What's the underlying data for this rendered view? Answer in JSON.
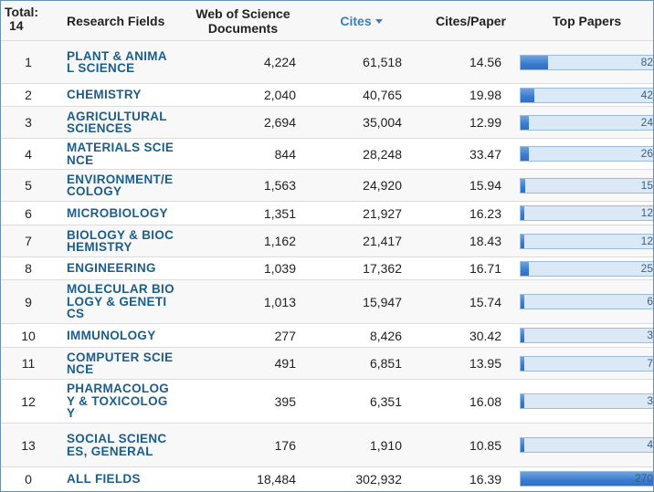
{
  "header": {
    "total_label": "Total:",
    "total_count": "14",
    "field": "Research Fields",
    "docs_line1": "Web of Science",
    "docs_line2": "Documents",
    "cites": "Cites",
    "cites_per_paper": "Cites/Paper",
    "top_papers": "Top Papers"
  },
  "colors": {
    "field_link": "#1b5e8c",
    "sorted_header": "#3b7ec0",
    "bar_fill": "#3a7bd0",
    "bar_track": "#dbe8f6"
  },
  "top_papers_max": 270,
  "rows": [
    {
      "rank": "1",
      "field": "PLANT & ANIMAL SCIENCE",
      "docs": "4,224",
      "cites": "61,518",
      "cpp": "14.56",
      "top": "82",
      "top_value": 82
    },
    {
      "rank": "2",
      "field": "CHEMISTRY",
      "docs": "2,040",
      "cites": "40,765",
      "cpp": "19.98",
      "top": "42",
      "top_value": 42
    },
    {
      "rank": "3",
      "field": "AGRICULTURAL SCIENCES",
      "docs": "2,694",
      "cites": "35,004",
      "cpp": "12.99",
      "top": "24",
      "top_value": 24
    },
    {
      "rank": "4",
      "field": "MATERIALS SCIENCE",
      "docs": "844",
      "cites": "28,248",
      "cpp": "33.47",
      "top": "26",
      "top_value": 26
    },
    {
      "rank": "5",
      "field": "ENVIRONMENT/ECOLOGY",
      "docs": "1,563",
      "cites": "24,920",
      "cpp": "15.94",
      "top": "15",
      "top_value": 15
    },
    {
      "rank": "6",
      "field": "MICROBIOLOGY",
      "docs": "1,351",
      "cites": "21,927",
      "cpp": "16.23",
      "top": "12",
      "top_value": 12
    },
    {
      "rank": "7",
      "field": "BIOLOGY & BIOCHEMISTRY",
      "docs": "1,162",
      "cites": "21,417",
      "cpp": "18.43",
      "top": "12",
      "top_value": 12
    },
    {
      "rank": "8",
      "field": "ENGINEERING",
      "docs": "1,039",
      "cites": "17,362",
      "cpp": "16.71",
      "top": "25",
      "top_value": 25
    },
    {
      "rank": "9",
      "field": "MOLECULAR BIOLOGY & GENETICS",
      "docs": "1,013",
      "cites": "15,947",
      "cpp": "15.74",
      "top": "6",
      "top_value": 6
    },
    {
      "rank": "10",
      "field": "IMMUNOLOGY",
      "docs": "277",
      "cites": "8,426",
      "cpp": "30.42",
      "top": "3",
      "top_value": 3
    },
    {
      "rank": "11",
      "field": "COMPUTER SCIENCE",
      "docs": "491",
      "cites": "6,851",
      "cpp": "13.95",
      "top": "7",
      "top_value": 7
    },
    {
      "rank": "12",
      "field": "PHARMACOLOGY & TOXICOLOGY",
      "docs": "395",
      "cites": "6,351",
      "cpp": "16.08",
      "top": "3",
      "top_value": 3
    },
    {
      "rank": "13",
      "field": "SOCIAL SCIENCES, GENERAL",
      "docs": "176",
      "cites": "1,910",
      "cpp": "10.85",
      "top": "4",
      "top_value": 4
    },
    {
      "rank": "0",
      "field": "ALL FIELDS",
      "docs": "18,484",
      "cites": "302,932",
      "cpp": "16.39",
      "top": "270",
      "top_value": 270
    }
  ]
}
